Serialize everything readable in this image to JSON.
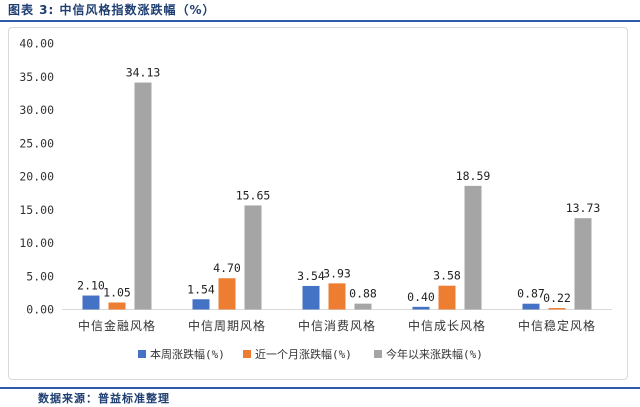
{
  "header": {
    "title": "图表 3:   中信风格指数涨跌幅（%）"
  },
  "footer": {
    "source": "数据来源：普益标准整理"
  },
  "colors": {
    "series": [
      "#4472c4",
      "#ed7d31",
      "#a5a5a5"
    ],
    "grid": "#d9d9d9",
    "text": "#333333"
  },
  "chart_data": {
    "type": "bar",
    "categories": [
      "中信金融风格",
      "中信周期风格",
      "中信消费风格",
      "中信成长风格",
      "中信稳定风格"
    ],
    "series": [
      {
        "name": "本周涨跌幅(%)",
        "values": [
          2.1,
          1.54,
          3.54,
          0.4,
          0.87
        ],
        "labels": [
          "2.10",
          "1.54",
          "3.54",
          "0.40",
          "0.87"
        ]
      },
      {
        "name": "近一个月涨跌幅(%)",
        "values": [
          1.05,
          4.7,
          3.93,
          3.58,
          0.22
        ],
        "labels": [
          "1.05",
          "4.70",
          "3.93",
          "3.58",
          "0.22"
        ]
      },
      {
        "name": "今年以来涨跌幅(%)",
        "values": [
          34.13,
          15.65,
          0.88,
          18.59,
          13.73
        ],
        "labels": [
          "34.13",
          "15.65",
          "0.88",
          "18.59",
          "13.73"
        ]
      }
    ],
    "y_ticks": [
      "0.00",
      "5.00",
      "10.00",
      "15.00",
      "20.00",
      "25.00",
      "30.00",
      "35.00",
      "40.00"
    ],
    "ylim": [
      0,
      40
    ],
    "grid": false,
    "legend": "bottom"
  }
}
